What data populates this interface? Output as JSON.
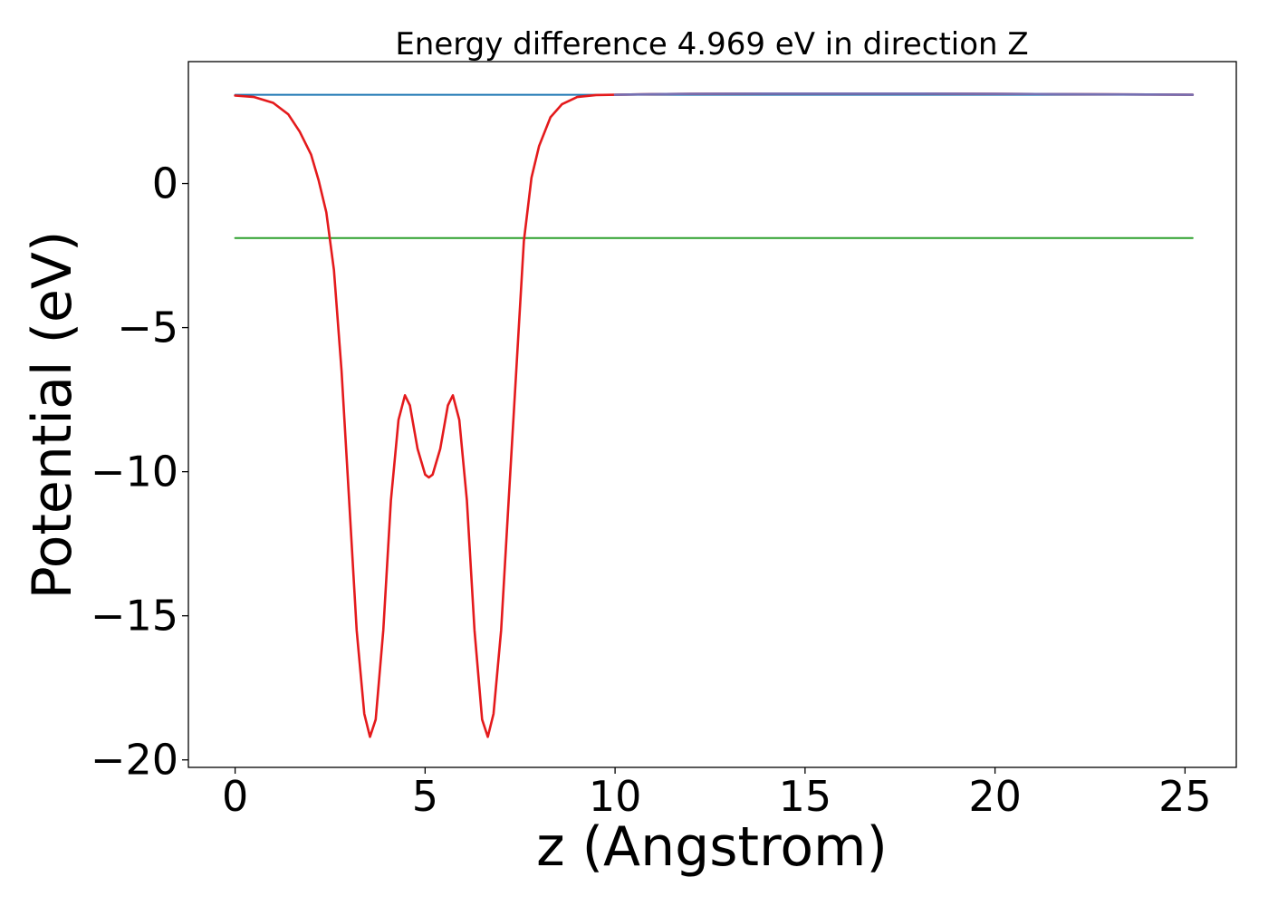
{
  "chart_data": {
    "type": "line",
    "title": "Energy difference 4.969 eV in direction Z",
    "xlabel": "z (Angstrom)",
    "ylabel": "Potential (eV)",
    "xlim": [
      -1.23,
      26.35
    ],
    "ylim": [
      -20.26,
      4.23
    ],
    "xticks": [
      0,
      5,
      10,
      15,
      20,
      25
    ],
    "yticks": [
      0,
      -5,
      -10,
      -15,
      -20
    ],
    "xtick_labels": [
      "0",
      "5",
      "10",
      "15",
      "20",
      "25"
    ],
    "ytick_labels": [
      "0",
      "−5",
      "−10",
      "−15",
      "−20"
    ],
    "grid": false,
    "legend": "none",
    "series": [
      {
        "color": "#1f77b4",
        "style": "horizontal",
        "x": [
          0,
          25.2
        ],
        "y": [
          3.08,
          3.08
        ]
      },
      {
        "color": "#2ca02c",
        "style": "horizontal",
        "x": [
          0,
          25.2
        ],
        "y": [
          -1.89,
          -1.89
        ]
      },
      {
        "color": "#e41a1c",
        "style": "curve",
        "x": [
          0,
          0.5,
          1.0,
          1.4,
          1.7,
          2.0,
          2.2,
          2.4,
          2.6,
          2.8,
          3.0,
          3.2,
          3.4,
          3.55,
          3.7,
          3.9,
          4.1,
          4.3,
          4.47,
          4.6,
          4.8,
          5.0,
          5.1,
          5.2,
          5.4,
          5.6,
          5.73,
          5.9,
          6.1,
          6.3,
          6.5,
          6.65,
          6.8,
          7.0,
          7.2,
          7.4,
          7.6,
          7.8,
          8.0,
          8.3,
          8.6,
          9.0,
          9.5,
          10.0,
          11.0,
          12.0,
          14.0,
          16.0,
          18.0,
          20.0,
          22.0,
          24.0,
          25.2
        ],
        "y": [
          3.05,
          3.0,
          2.8,
          2.4,
          1.8,
          1.0,
          0.1,
          -1.0,
          -3.0,
          -6.5,
          -11.0,
          -15.5,
          -18.4,
          -19.2,
          -18.6,
          -15.5,
          -11.0,
          -8.2,
          -7.35,
          -7.7,
          -9.2,
          -10.1,
          -10.2,
          -10.1,
          -9.2,
          -7.7,
          -7.35,
          -8.2,
          -11.0,
          -15.5,
          -18.6,
          -19.2,
          -18.4,
          -15.5,
          -11.0,
          -6.5,
          -2.0,
          0.2,
          1.3,
          2.3,
          2.75,
          3.0,
          3.07,
          3.08,
          3.1,
          3.11,
          3.12,
          3.12,
          3.12,
          3.11,
          3.1,
          3.09,
          3.08
        ]
      },
      {
        "color": "#7570b3",
        "style": "curve",
        "x": [
          10.0,
          11.0,
          12.0,
          14.0,
          16.0,
          18.0,
          20.0,
          22.0,
          24.0,
          25.2
        ],
        "y": [
          3.08,
          3.1,
          3.11,
          3.12,
          3.12,
          3.12,
          3.11,
          3.1,
          3.09,
          3.08
        ]
      }
    ]
  }
}
